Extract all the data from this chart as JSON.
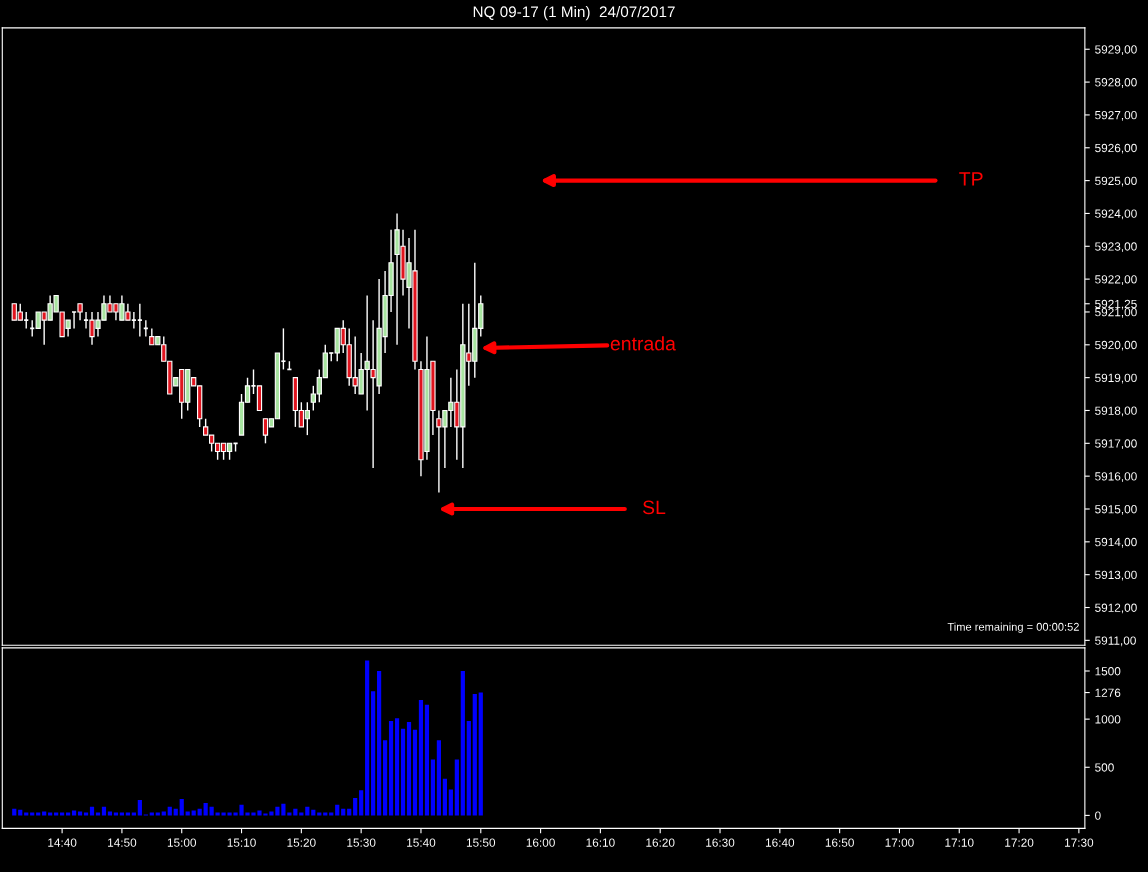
{
  "chart_data": [
    {
      "type": "candlestick",
      "title": "NQ 09-17 (1 Min)  24/07/2017",
      "x": [
        "2017-07-24T14:32",
        "2017-07-24T14:33",
        "2017-07-24T14:34",
        "2017-07-24T14:35",
        "2017-07-24T14:36",
        "2017-07-24T14:37",
        "2017-07-24T14:38",
        "2017-07-24T14:39",
        "2017-07-24T14:40",
        "2017-07-24T14:41",
        "2017-07-24T14:42",
        "2017-07-24T14:43",
        "2017-07-24T14:44",
        "2017-07-24T14:45",
        "2017-07-24T14:46",
        "2017-07-24T14:47",
        "2017-07-24T14:48",
        "2017-07-24T14:49",
        "2017-07-24T14:50",
        "2017-07-24T14:51",
        "2017-07-24T14:52",
        "2017-07-24T14:53",
        "2017-07-24T14:54",
        "2017-07-24T14:55",
        "2017-07-24T14:56",
        "2017-07-24T14:57",
        "2017-07-24T14:58",
        "2017-07-24T14:59",
        "2017-07-24T15:00",
        "2017-07-24T15:01",
        "2017-07-24T15:02",
        "2017-07-24T15:03",
        "2017-07-24T15:04",
        "2017-07-24T15:05",
        "2017-07-24T15:06",
        "2017-07-24T15:07",
        "2017-07-24T15:08",
        "2017-07-24T15:09",
        "2017-07-24T15:10",
        "2017-07-24T15:11",
        "2017-07-24T15:12",
        "2017-07-24T15:13",
        "2017-07-24T15:14",
        "2017-07-24T15:15",
        "2017-07-24T15:16",
        "2017-07-24T15:17",
        "2017-07-24T15:18",
        "2017-07-24T15:19",
        "2017-07-24T15:20",
        "2017-07-24T15:21",
        "2017-07-24T15:22",
        "2017-07-24T15:23",
        "2017-07-24T15:24",
        "2017-07-24T15:25",
        "2017-07-24T15:26",
        "2017-07-24T15:27",
        "2017-07-24T15:28",
        "2017-07-24T15:29",
        "2017-07-24T15:30",
        "2017-07-24T15:31",
        "2017-07-24T15:32",
        "2017-07-24T15:33",
        "2017-07-24T15:34",
        "2017-07-24T15:35",
        "2017-07-24T15:36",
        "2017-07-24T15:37",
        "2017-07-24T15:38",
        "2017-07-24T15:39",
        "2017-07-24T15:40",
        "2017-07-24T15:41",
        "2017-07-24T15:42",
        "2017-07-24T15:43",
        "2017-07-24T15:44",
        "2017-07-24T15:45",
        "2017-07-24T15:46",
        "2017-07-24T15:47",
        "2017-07-24T15:48",
        "2017-07-24T15:49",
        "2017-07-24T15:50"
      ],
      "ohlc": [
        [
          5921.25,
          5921.25,
          5920.75,
          5920.75
        ],
        [
          5921,
          5921.25,
          5920.75,
          5920.75
        ],
        [
          5920.75,
          5921,
          5920.5,
          5920.75
        ],
        [
          5920.5,
          5920.75,
          5920.25,
          5920.5
        ],
        [
          5920.5,
          5921,
          5920.5,
          5921
        ],
        [
          5921,
          5921,
          5920,
          5920.75
        ],
        [
          5920.75,
          5921.5,
          5920.75,
          5921.25
        ],
        [
          5921,
          5921.5,
          5921,
          5921.5
        ],
        [
          5921,
          5921,
          5920.25,
          5920.25
        ],
        [
          5920.5,
          5920.75,
          5920.25,
          5920.75
        ],
        [
          5921,
          5921,
          5920.5,
          5921
        ],
        [
          5921.25,
          5921.25,
          5920.75,
          5921
        ],
        [
          5920.75,
          5921,
          5920.5,
          5920.75
        ],
        [
          5920.75,
          5921,
          5920,
          5920.25
        ],
        [
          5920.5,
          5921,
          5920.25,
          5920.75
        ],
        [
          5920.75,
          5921.5,
          5920.75,
          5921.25
        ],
        [
          5921.25,
          5921.5,
          5921,
          5921
        ],
        [
          5921.25,
          5921.25,
          5920.75,
          5921
        ],
        [
          5920.75,
          5921.5,
          5920.75,
          5921.25
        ],
        [
          5921,
          5921.25,
          5920.75,
          5920.75
        ],
        [
          5920.75,
          5921,
          5920.5,
          5920.75
        ],
        [
          5920.75,
          5921.25,
          5920.25,
          5920.75
        ],
        [
          5920.5,
          5920.75,
          5920.25,
          5920.5
        ],
        [
          5920.25,
          5920.5,
          5920,
          5920
        ],
        [
          5920,
          5920.25,
          5920,
          5920.25
        ],
        [
          5920,
          5920.25,
          5919.5,
          5919.5
        ],
        [
          5919.5,
          5919.5,
          5918.5,
          5918.5
        ],
        [
          5918.75,
          5919,
          5918.75,
          5919
        ],
        [
          5919.25,
          5919.25,
          5917.75,
          5918.25
        ],
        [
          5918.25,
          5919.25,
          5918,
          5919.25
        ],
        [
          5919,
          5919,
          5918.75,
          5918.75
        ],
        [
          5918.75,
          5918.75,
          5917.5,
          5917.75
        ],
        [
          5917.5,
          5917.75,
          5917.25,
          5917.25
        ],
        [
          5917.25,
          5917.25,
          5916.75,
          5917
        ],
        [
          5917,
          5917,
          5916.5,
          5916.75
        ],
        [
          5917,
          5917,
          5916.5,
          5916.75
        ],
        [
          5916.75,
          5917,
          5916.5,
          5917
        ],
        [
          5917,
          5917,
          5916.75,
          5917
        ],
        [
          5917.25,
          5918.5,
          5917.25,
          5918.25
        ],
        [
          5918.25,
          5919,
          5918.25,
          5918.75
        ],
        [
          5918.75,
          5919.25,
          5918.5,
          5918.75
        ],
        [
          5918.75,
          5918.75,
          5918,
          5918
        ],
        [
          5917.75,
          5917.75,
          5917,
          5917.25
        ],
        [
          5917.5,
          5917.75,
          5917.5,
          5917.75
        ],
        [
          5917.75,
          5919.75,
          5917.75,
          5919.75
        ],
        [
          5919.5,
          5920.5,
          5919.25,
          5919.5
        ],
        [
          5919.25,
          5919.5,
          5919.25,
          5919.25
        ],
        [
          5919,
          5919,
          5917.5,
          5918
        ],
        [
          5918,
          5918.25,
          5917.5,
          5917.5
        ],
        [
          5917.75,
          5918.25,
          5917.25,
          5918
        ],
        [
          5918.25,
          5918.75,
          5918,
          5918.5
        ],
        [
          5918.5,
          5919.25,
          5918.25,
          5919
        ],
        [
          5919,
          5920,
          5919,
          5919.75
        ],
        [
          5919.75,
          5919.75,
          5919.5,
          5919.75
        ],
        [
          5919.75,
          5920.5,
          5919.5,
          5920.5
        ],
        [
          5920.5,
          5920.75,
          5919.75,
          5920
        ],
        [
          5920,
          5920.5,
          5918.75,
          5919
        ],
        [
          5919,
          5920.25,
          5918.5,
          5918.75
        ],
        [
          5918.5,
          5919.75,
          5918.5,
          5919.25
        ],
        [
          5919.25,
          5921.5,
          5918,
          5919.5
        ],
        [
          5919.25,
          5920.75,
          5916.25,
          5919
        ],
        [
          5918.75,
          5922,
          5918.5,
          5920.5
        ],
        [
          5920.25,
          5922.25,
          5919.75,
          5921.5
        ],
        [
          5921.5,
          5923.5,
          5921,
          5922.5
        ],
        [
          5922.75,
          5924,
          5920,
          5923.5
        ],
        [
          5923,
          5923.5,
          5921.5,
          5922
        ],
        [
          5921.75,
          5923.25,
          5920.5,
          5922.5
        ],
        [
          5922.25,
          5923.5,
          5919.25,
          5919.5
        ],
        [
          5919.25,
          5919.5,
          5916,
          5916.5
        ],
        [
          5916.75,
          5920.25,
          5916.5,
          5919.25
        ],
        [
          5919.5,
          5919.5,
          5917.25,
          5918
        ],
        [
          5917.75,
          5918,
          5915.5,
          5917.5
        ],
        [
          5917.5,
          5918,
          5916.25,
          5918
        ],
        [
          5918,
          5919,
          5917.5,
          5918.25
        ],
        [
          5918.25,
          5919.25,
          5916.5,
          5917.5
        ],
        [
          5917.5,
          5921.25,
          5916.25,
          5920
        ],
        [
          5919.75,
          5921.25,
          5918.75,
          5919.5
        ],
        [
          5919.5,
          5922.5,
          5919,
          5920.5
        ],
        [
          5920.5,
          5921.5,
          5920.25,
          5921.25
        ]
      ],
      "xlim": [
        "2017-07-24T14:30",
        "2017-07-24T17:31"
      ],
      "ylim": [
        5910.85,
        5929.65
      ],
      "yticks": [
        {
          "value": 5911,
          "label": "5911,00"
        },
        {
          "value": 5912,
          "label": "5912,00"
        },
        {
          "value": 5913,
          "label": "5913,00"
        },
        {
          "value": 5914,
          "label": "5914,00"
        },
        {
          "value": 5915,
          "label": "5915,00"
        },
        {
          "value": 5916,
          "label": "5916,00"
        },
        {
          "value": 5917,
          "label": "5917,00"
        },
        {
          "value": 5918,
          "label": "5918,00"
        },
        {
          "value": 5919,
          "label": "5919,00"
        },
        {
          "value": 5920,
          "label": "5920,00"
        },
        {
          "value": 5921,
          "label": "5921,00"
        },
        {
          "value": 5921.25,
          "label": "5921,25"
        },
        {
          "value": 5922,
          "label": "5922,00"
        },
        {
          "value": 5923,
          "label": "5923,00"
        },
        {
          "value": 5924,
          "label": "5924,00"
        },
        {
          "value": 5925,
          "label": "5925,00"
        },
        {
          "value": 5926,
          "label": "5926,00"
        },
        {
          "value": 5927,
          "label": "5927,00"
        },
        {
          "value": 5928,
          "label": "5928,00"
        },
        {
          "value": 5929,
          "label": "5929,00"
        }
      ],
      "tick_labels": "y",
      "grid": false,
      "annotations": [
        "TP",
        {
          "text": "entrada",
          "x": "2017-07-24T15:50",
          "y": 5919.9
        },
        "SL",
        "Time remaining = 00:00:52"
      ]
    },
    {
      "type": "bar",
      "x": [
        "2017-07-24T14:32",
        "2017-07-24T14:33",
        "2017-07-24T14:34",
        "2017-07-24T14:35",
        "2017-07-24T14:36",
        "2017-07-24T14:37",
        "2017-07-24T14:38",
        "2017-07-24T14:39",
        "2017-07-24T14:40",
        "2017-07-24T14:41",
        "2017-07-24T14:42",
        "2017-07-24T14:43",
        "2017-07-24T14:44",
        "2017-07-24T14:45",
        "2017-07-24T14:46",
        "2017-07-24T14:47",
        "2017-07-24T14:48",
        "2017-07-24T14:49",
        "2017-07-24T14:50",
        "2017-07-24T14:51",
        "2017-07-24T14:52",
        "2017-07-24T14:53",
        "2017-07-24T14:54",
        "2017-07-24T14:55",
        "2017-07-24T14:56",
        "2017-07-24T14:57",
        "2017-07-24T14:58",
        "2017-07-24T14:59",
        "2017-07-24T15:00",
        "2017-07-24T15:01",
        "2017-07-24T15:02",
        "2017-07-24T15:03",
        "2017-07-24T15:04",
        "2017-07-24T15:05",
        "2017-07-24T15:06",
        "2017-07-24T15:07",
        "2017-07-24T15:08",
        "2017-07-24T15:09",
        "2017-07-24T15:10",
        "2017-07-24T15:11",
        "2017-07-24T15:12",
        "2017-07-24T15:13",
        "2017-07-24T15:14",
        "2017-07-24T15:15",
        "2017-07-24T15:16",
        "2017-07-24T15:17",
        "2017-07-24T15:18",
        "2017-07-24T15:19",
        "2017-07-24T15:20",
        "2017-07-24T15:21",
        "2017-07-24T15:22",
        "2017-07-24T15:23",
        "2017-07-24T15:24",
        "2017-07-24T15:25",
        "2017-07-24T15:26",
        "2017-07-24T15:27",
        "2017-07-24T15:28",
        "2017-07-24T15:29",
        "2017-07-24T15:30",
        "2017-07-24T15:31",
        "2017-07-24T15:32",
        "2017-07-24T15:33",
        "2017-07-24T15:34",
        "2017-07-24T15:35",
        "2017-07-24T15:36",
        "2017-07-24T15:37",
        "2017-07-24T15:38",
        "2017-07-24T15:39",
        "2017-07-24T15:40",
        "2017-07-24T15:41",
        "2017-07-24T15:42",
        "2017-07-24T15:43",
        "2017-07-24T15:44",
        "2017-07-24T15:45",
        "2017-07-24T15:46",
        "2017-07-24T15:47",
        "2017-07-24T15:48",
        "2017-07-24T15:49",
        "2017-07-24T15:50"
      ],
      "series": [
        {
          "color": "#0000ff",
          "values": [
            70,
            60,
            30,
            30,
            30,
            40,
            30,
            30,
            30,
            30,
            50,
            40,
            30,
            90,
            30,
            90,
            40,
            30,
            30,
            30,
            30,
            160,
            10,
            30,
            30,
            40,
            90,
            70,
            170,
            40,
            50,
            70,
            130,
            90,
            30,
            30,
            30,
            30,
            110,
            30,
            30,
            50,
            20,
            40,
            90,
            120,
            30,
            70,
            30,
            90,
            60,
            30,
            30,
            30,
            110,
            70,
            70,
            180,
            260,
            1610,
            1290,
            1500,
            780,
            980,
            1010,
            900,
            970,
            890,
            1200,
            1150,
            580,
            780,
            380,
            270,
            580,
            1500,
            980,
            1260,
            1276
          ]
        }
      ],
      "xlim": [
        "2017-07-24T14:30",
        "2017-07-24T17:31"
      ],
      "ylim": [
        -135,
        1740
      ],
      "yticks": [
        0,
        500,
        1000,
        1276,
        1500
      ],
      "xticks": [
        {
          "value": "2017-07-24T14:40",
          "label": "14:40"
        },
        {
          "value": "2017-07-24T14:50",
          "label": "14:50"
        },
        {
          "value": "2017-07-24T15:00",
          "label": "15:00"
        },
        {
          "value": "2017-07-24T15:10",
          "label": "15:10"
        },
        {
          "value": "2017-07-24T15:20",
          "label": "15:20"
        },
        {
          "value": "2017-07-24T15:30",
          "label": "15:30"
        },
        {
          "value": "2017-07-24T15:40",
          "label": "15:40"
        },
        {
          "value": "2017-07-24T15:50",
          "label": "15:50"
        },
        {
          "value": "2017-07-24T16:00",
          "label": "16:00"
        },
        {
          "value": "2017-07-24T16:10",
          "label": "16:10"
        },
        {
          "value": "2017-07-24T16:20",
          "label": "16:20"
        },
        {
          "value": "2017-07-24T16:30",
          "label": "16:30"
        },
        {
          "value": "2017-07-24T16:40",
          "label": "16:40"
        },
        {
          "value": "2017-07-24T16:50",
          "label": "16:50"
        },
        {
          "value": "2017-07-24T17:00",
          "label": "17:00"
        },
        {
          "value": "2017-07-24T17:10",
          "label": "17:10"
        },
        {
          "value": "2017-07-24T17:20",
          "label": "17:20"
        },
        {
          "value": "2017-07-24T17:30",
          "label": "17:30"
        }
      ],
      "grid": false
    }
  ]
}
